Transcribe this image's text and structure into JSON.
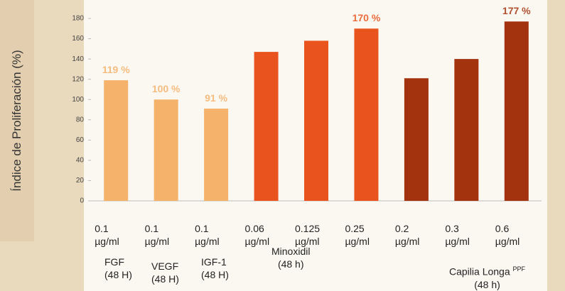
{
  "chart_data": {
    "type": "bar",
    "y_axis_label": "Índice de Proliferación (%)",
    "categories": [
      "0.1 µg/ml",
      "0.1 µg/ml",
      "0.1 µg/ml",
      "0.06 µg/ml",
      "0.125 µg/ml",
      "0.25 µg/ml",
      "0.2 µg/ml",
      "0.3 µg/ml",
      "0.6 µg/ml"
    ],
    "values": [
      119,
      100,
      91,
      147,
      158,
      170,
      121,
      140,
      177
    ],
    "value_labels": [
      "119 %",
      "100 %",
      "91 %",
      null,
      null,
      "170 %",
      null,
      null,
      "177 %"
    ],
    "colors": [
      "#f4b26a",
      "#f4b26a",
      "#f4b26a",
      "#e9541e",
      "#e9541e",
      "#e9541e",
      "#a3330f",
      "#a3330f",
      "#a3330f"
    ],
    "groups": [
      {
        "label": "FGF",
        "duration": "(48 H)"
      },
      {
        "label": "VEGF",
        "duration": "(48 H)"
      },
      {
        "label": "IGF-1",
        "duration": "(48 H)"
      },
      {
        "label": "Minoxidil",
        "duration": "(48 h)"
      },
      {
        "label": "Capilia Longa",
        "sup": "PPF",
        "duration": "(48 h)"
      }
    ],
    "ylim": [
      0,
      180
    ],
    "yticks": [
      0,
      20,
      40,
      60,
      80,
      100,
      120,
      140,
      160,
      180
    ],
    "grid": false
  }
}
